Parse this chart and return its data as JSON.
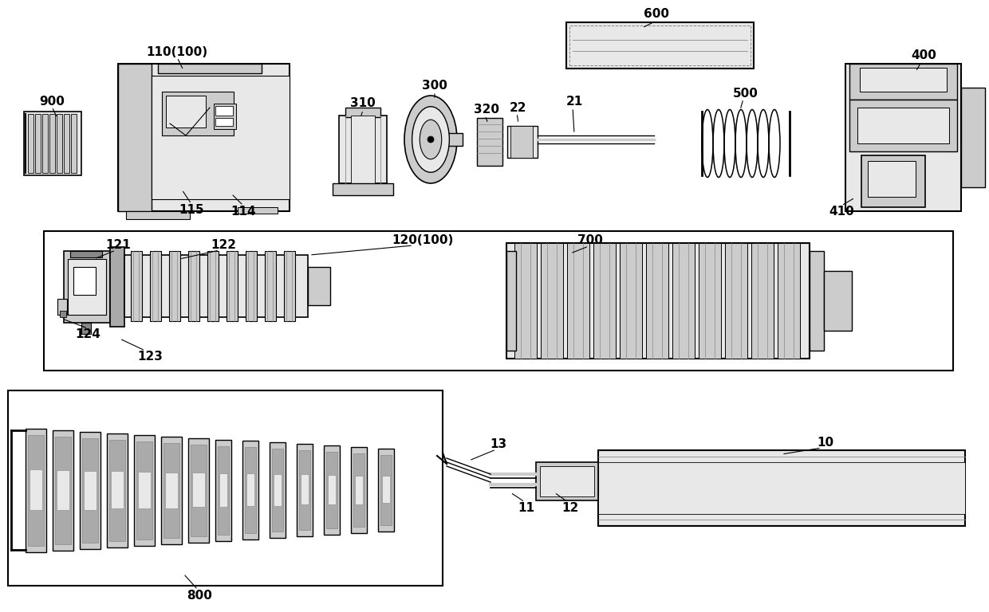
{
  "bg_color": "#ffffff",
  "lc": "#000000",
  "gray1": "#aaaaaa",
  "gray2": "#cccccc",
  "gray3": "#e8e8e8",
  "gray4": "#888888",
  "gray5": "#bbbbbb"
}
